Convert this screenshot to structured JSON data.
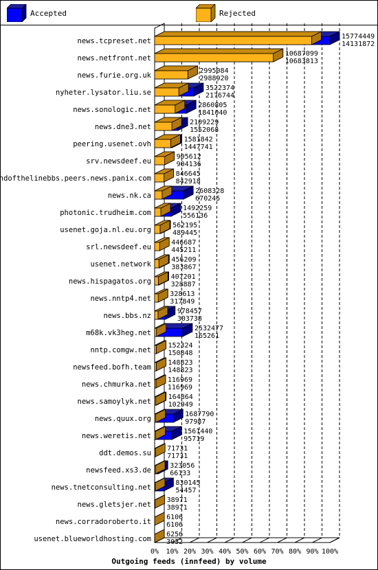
{
  "legend": {
    "accepted_label": "Accepted",
    "rejected_label": "Rejected"
  },
  "colors": {
    "accepted_front": "#0000ff",
    "accepted_top": "#2020a0",
    "accepted_side": "#000080",
    "rejected_front": "#ffb31a",
    "rejected_top": "#c88a10",
    "rejected_side": "#b07810"
  },
  "chart_data": {
    "type": "bar",
    "orientation": "horizontal",
    "style": "3d-stacked",
    "xlabel": "Outgoing feeds (innfeed) by volume",
    "max_value": 15774449,
    "xticks": [
      "0%",
      "10%",
      "20%",
      "30%",
      "40%",
      "50%",
      "60%",
      "70%",
      "80%",
      "90%",
      "100%"
    ],
    "grid": "vertical dashed",
    "legend_position": "top-left",
    "categories": [
      "news.tcpreset.net",
      "news.netfront.net",
      "news.furie.org.uk",
      "nyheter.lysator.liu.se",
      "news.sonologic.net",
      "news.dne3.net",
      "peering.usenet.ovh",
      "srv.newsdeef.eu",
      "endofthelinebbs.peers.news.panix.com",
      "news.nk.ca",
      "photonic.trudheim.com",
      "usenet.goja.nl.eu.org",
      "srl.newsdeef.eu",
      "usenet.network",
      "news.hispagatos.org",
      "news.nntp4.net",
      "news.bbs.nz",
      "m68k.vk3heg.net",
      "nntp.comgw.net",
      "newsfeed.bofh.team",
      "news.chmurka.net",
      "news.samoylyk.net",
      "news.quux.org",
      "news.weretis.net",
      "ddt.demos.su",
      "newsfeed.xs3.de",
      "news.tnetconsulting.net",
      "news.gletsjer.net",
      "news.corradoroberto.it",
      "usenet.blueworldhosting.com"
    ],
    "series": [
      {
        "name": "Accepted",
        "values": [
          15774449,
          10687099,
          2995084,
          3522374,
          2860805,
          2109229,
          1581842,
          905612,
          846645,
          2608328,
          1492259,
          562195,
          446687,
          456209,
          407201,
          328613,
          978457,
          2532477,
          152324,
          148823,
          116969,
          164864,
          1687790,
          1561440,
          71731,
          323056,
          830145,
          38971,
          6106,
          6256
        ]
      },
      {
        "name": "Rejected",
        "values": [
          14131872,
          10683813,
          2988920,
          2176744,
          1841040,
          1552068,
          1447741,
          904136,
          842918,
          670245,
          556136,
          489445,
          445211,
          383867,
          328887,
          317849,
          303738,
          165261,
          150848,
          148823,
          116969,
          102949,
          97987,
          95719,
          71731,
          66133,
          54457,
          38971,
          6106,
          3032
        ]
      }
    ]
  }
}
